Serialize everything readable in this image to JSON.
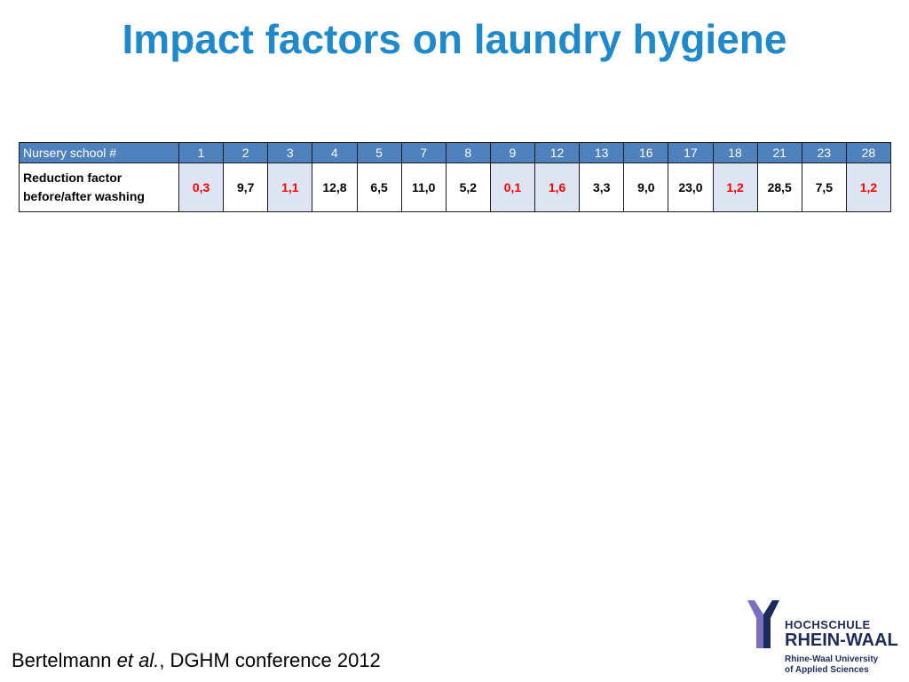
{
  "title": "Impact factors on laundry hygiene",
  "table": {
    "header_label": "Nursery school #",
    "schools": [
      "1",
      "2",
      "3",
      "4",
      "5",
      "7",
      "8",
      "9",
      "12",
      "13",
      "16",
      "17",
      "18",
      "21",
      "23",
      "28"
    ],
    "row_label_line1": "Reduction factor",
    "row_label_line2": "before/after washing",
    "values": [
      "0,3",
      "9,7",
      "1,1",
      "12,8",
      "6,5",
      "11,0",
      "5,2",
      "0,1",
      "1,6",
      "3,3",
      "9,0",
      "23,0",
      "1,2",
      "28,5",
      "7,5",
      "1,2"
    ],
    "highlighted": [
      true,
      false,
      true,
      false,
      false,
      false,
      false,
      true,
      true,
      false,
      false,
      false,
      true,
      false,
      false,
      true
    ],
    "colors": {
      "header_bg": "#4f81bd",
      "highlight_bg": "#dde5f2",
      "highlight_text": "#ff0000"
    }
  },
  "citation": {
    "author": "Bertelmann ",
    "etal": "et al.",
    "rest": ", DGHM conference 2012"
  },
  "logo": {
    "line1": "HOCHSCHULE",
    "line2": "RHEIN-WAAL",
    "line3": "Rhine-Waal University",
    "line4": "of Applied Sciences",
    "mark_color": "#1d2b5a",
    "accent_color": "#7b6fbf"
  },
  "title_color": "#1f8acb"
}
